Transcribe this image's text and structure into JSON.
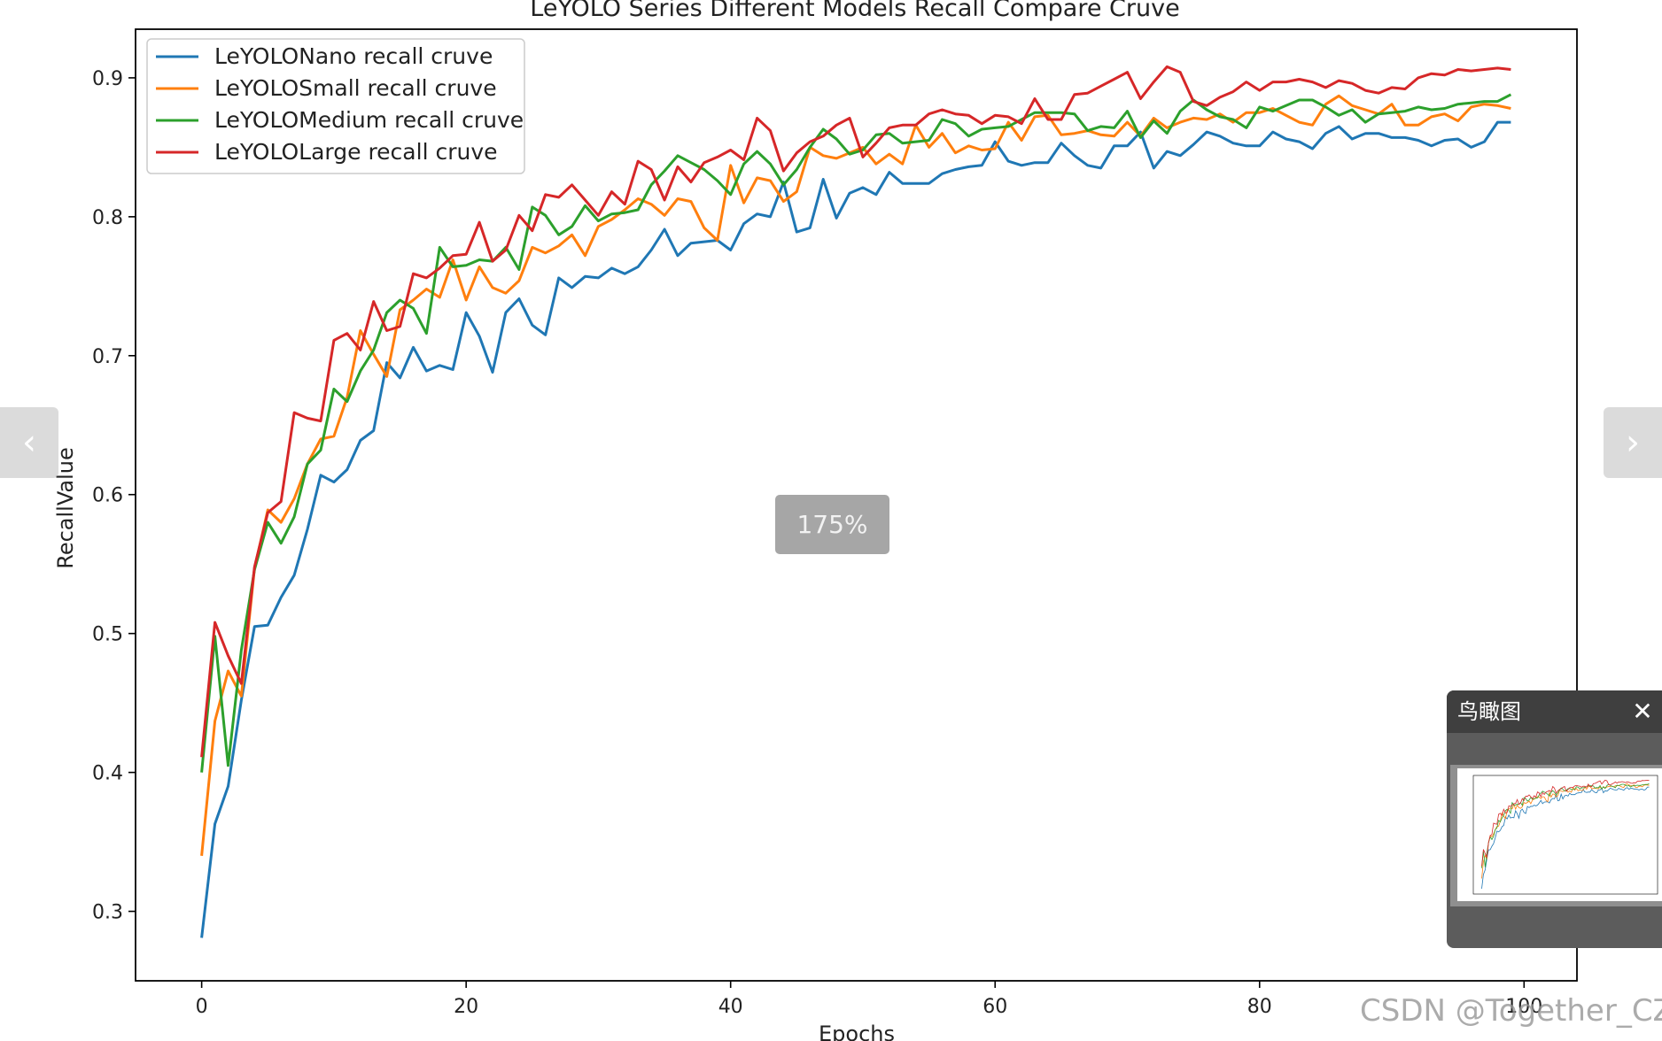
{
  "viewer": {
    "zoom_label": "175%",
    "prev_icon": "chevron-left-icon",
    "next_icon": "chevron-right-icon",
    "birdseye": {
      "title": "鸟瞰图",
      "close_icon": "close-icon"
    },
    "watermark": "CSDN @Together_CZ"
  },
  "chart_data": {
    "type": "line",
    "title": "LeYOLO Series Different Models Recall Compare Cruve",
    "xlabel": "Epochs",
    "ylabel": "RecallValue",
    "xlim": [
      -5,
      104
    ],
    "ylim": [
      0.25,
      0.935
    ],
    "xticks": [
      "0",
      "20",
      "40",
      "60",
      "80",
      "100"
    ],
    "yticks": [
      "0.3",
      "0.4",
      "0.5",
      "0.6",
      "0.7",
      "0.8",
      "0.9"
    ],
    "grid": false,
    "legend": "top-left",
    "series": [
      {
        "name": "LeYOLONano recall cruve",
        "color": "#1f77b4",
        "values": [
          0.281,
          0.363,
          0.39,
          0.452,
          0.505,
          0.506,
          0.526,
          0.542,
          0.575,
          0.614,
          0.609,
          0.618,
          0.639,
          0.646,
          0.695,
          0.684,
          0.706,
          0.689,
          0.693,
          0.69,
          0.731,
          0.714,
          0.688,
          0.731,
          0.741,
          0.722,
          0.715,
          0.756,
          0.749,
          0.757,
          0.756,
          0.763,
          0.759,
          0.764,
          0.776,
          0.791,
          0.772,
          0.781,
          0.782,
          0.783,
          0.776,
          0.795,
          0.802,
          0.8,
          0.825,
          0.789,
          0.792,
          0.827,
          0.799,
          0.817,
          0.821,
          0.816,
          0.832,
          0.824,
          0.824,
          0.824,
          0.831,
          0.834,
          0.836,
          0.837,
          0.854,
          0.84,
          0.837,
          0.839,
          0.839,
          0.853,
          0.844,
          0.837,
          0.835,
          0.851,
          0.851,
          0.861,
          0.835,
          0.847,
          0.844,
          0.852,
          0.861,
          0.858,
          0.853,
          0.851,
          0.851,
          0.861,
          0.856,
          0.854,
          0.849,
          0.86,
          0.865,
          0.856,
          0.86,
          0.86,
          0.857,
          0.857,
          0.855,
          0.851,
          0.855,
          0.856,
          0.85,
          0.854,
          0.868,
          0.868
        ]
      },
      {
        "name": "LeYOLOSmall recall cruve",
        "color": "#ff7f0e",
        "values": [
          0.34,
          0.437,
          0.473,
          0.455,
          0.547,
          0.589,
          0.58,
          0.597,
          0.622,
          0.64,
          0.642,
          0.67,
          0.718,
          0.701,
          0.685,
          0.733,
          0.74,
          0.748,
          0.742,
          0.769,
          0.74,
          0.764,
          0.749,
          0.745,
          0.754,
          0.778,
          0.774,
          0.779,
          0.787,
          0.772,
          0.793,
          0.798,
          0.805,
          0.813,
          0.809,
          0.801,
          0.813,
          0.811,
          0.792,
          0.783,
          0.837,
          0.81,
          0.828,
          0.826,
          0.811,
          0.818,
          0.85,
          0.844,
          0.842,
          0.846,
          0.85,
          0.838,
          0.845,
          0.838,
          0.866,
          0.85,
          0.86,
          0.846,
          0.851,
          0.848,
          0.849,
          0.868,
          0.855,
          0.872,
          0.873,
          0.859,
          0.86,
          0.862,
          0.859,
          0.858,
          0.868,
          0.858,
          0.871,
          0.864,
          0.868,
          0.871,
          0.87,
          0.874,
          0.868,
          0.875,
          0.875,
          0.878,
          0.873,
          0.868,
          0.866,
          0.881,
          0.887,
          0.88,
          0.877,
          0.874,
          0.881,
          0.866,
          0.866,
          0.872,
          0.874,
          0.869,
          0.879,
          0.881,
          0.88,
          0.878
        ]
      },
      {
        "name": "LeYOLOMedium recall cruve",
        "color": "#2ca02c",
        "values": [
          0.4,
          0.498,
          0.405,
          0.488,
          0.546,
          0.58,
          0.565,
          0.584,
          0.622,
          0.632,
          0.676,
          0.667,
          0.689,
          0.704,
          0.731,
          0.74,
          0.734,
          0.716,
          0.778,
          0.764,
          0.765,
          0.769,
          0.768,
          0.778,
          0.762,
          0.807,
          0.801,
          0.787,
          0.793,
          0.808,
          0.797,
          0.802,
          0.803,
          0.805,
          0.823,
          0.833,
          0.844,
          0.839,
          0.834,
          0.826,
          0.816,
          0.838,
          0.847,
          0.838,
          0.823,
          0.834,
          0.85,
          0.863,
          0.856,
          0.845,
          0.848,
          0.859,
          0.86,
          0.853,
          0.854,
          0.855,
          0.87,
          0.867,
          0.858,
          0.863,
          0.864,
          0.865,
          0.87,
          0.875,
          0.875,
          0.875,
          0.874,
          0.862,
          0.865,
          0.864,
          0.876,
          0.857,
          0.869,
          0.86,
          0.876,
          0.884,
          0.877,
          0.872,
          0.87,
          0.864,
          0.879,
          0.876,
          0.88,
          0.884,
          0.884,
          0.879,
          0.873,
          0.877,
          0.868,
          0.874,
          0.875,
          0.876,
          0.879,
          0.877,
          0.878,
          0.881,
          0.882,
          0.883,
          0.883,
          0.888
        ]
      },
      {
        "name": "LeYOLOLarge recall cruve",
        "color": "#d62728",
        "values": [
          0.411,
          0.508,
          0.484,
          0.464,
          0.548,
          0.587,
          0.595,
          0.659,
          0.655,
          0.653,
          0.711,
          0.716,
          0.704,
          0.739,
          0.718,
          0.721,
          0.759,
          0.756,
          0.763,
          0.772,
          0.773,
          0.796,
          0.768,
          0.776,
          0.801,
          0.79,
          0.816,
          0.814,
          0.823,
          0.812,
          0.801,
          0.818,
          0.809,
          0.84,
          0.834,
          0.812,
          0.836,
          0.825,
          0.839,
          0.843,
          0.848,
          0.841,
          0.871,
          0.862,
          0.833,
          0.846,
          0.854,
          0.858,
          0.866,
          0.871,
          0.843,
          0.853,
          0.864,
          0.866,
          0.866,
          0.874,
          0.877,
          0.874,
          0.873,
          0.867,
          0.873,
          0.872,
          0.867,
          0.885,
          0.87,
          0.87,
          0.888,
          0.889,
          0.894,
          0.899,
          0.904,
          0.885,
          0.897,
          0.908,
          0.904,
          0.883,
          0.88,
          0.886,
          0.89,
          0.897,
          0.891,
          0.897,
          0.897,
          0.899,
          0.897,
          0.893,
          0.898,
          0.896,
          0.891,
          0.889,
          0.893,
          0.892,
          0.9,
          0.903,
          0.902,
          0.906,
          0.905,
          0.906,
          0.907,
          0.906
        ]
      }
    ]
  }
}
